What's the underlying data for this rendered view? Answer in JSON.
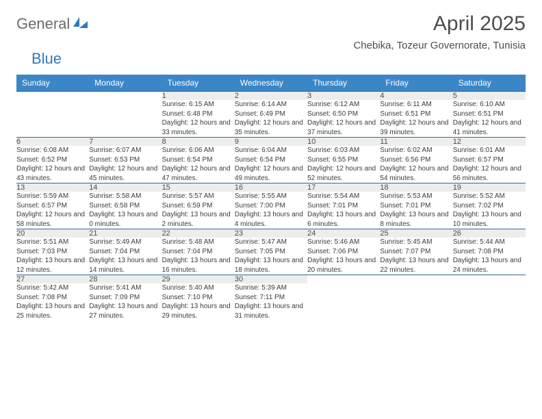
{
  "logo": {
    "part1": "General",
    "part2": "Blue"
  },
  "title": "April 2025",
  "location": "Chebika, Tozeur Governorate, Tunisia",
  "colors": {
    "header_bg": "#3b86c7",
    "header_text": "#ffffff",
    "daynum_bg": "#eceded",
    "row_border": "#2f6aa0",
    "body_text": "#3b3b3b",
    "title_text": "#4d4d4d",
    "logo_gray": "#6c6c6c",
    "logo_blue": "#2f79bf"
  },
  "day_names": [
    "Sunday",
    "Monday",
    "Tuesday",
    "Wednesday",
    "Thursday",
    "Friday",
    "Saturday"
  ],
  "weeks": [
    [
      null,
      null,
      {
        "n": "1",
        "sr": "6:15 AM",
        "ss": "6:48 PM",
        "dl": "12 hours and 33 minutes."
      },
      {
        "n": "2",
        "sr": "6:14 AM",
        "ss": "6:49 PM",
        "dl": "12 hours and 35 minutes."
      },
      {
        "n": "3",
        "sr": "6:12 AM",
        "ss": "6:50 PM",
        "dl": "12 hours and 37 minutes."
      },
      {
        "n": "4",
        "sr": "6:11 AM",
        "ss": "6:51 PM",
        "dl": "12 hours and 39 minutes."
      },
      {
        "n": "5",
        "sr": "6:10 AM",
        "ss": "6:51 PM",
        "dl": "12 hours and 41 minutes."
      }
    ],
    [
      {
        "n": "6",
        "sr": "6:08 AM",
        "ss": "6:52 PM",
        "dl": "12 hours and 43 minutes."
      },
      {
        "n": "7",
        "sr": "6:07 AM",
        "ss": "6:53 PM",
        "dl": "12 hours and 45 minutes."
      },
      {
        "n": "8",
        "sr": "6:06 AM",
        "ss": "6:54 PM",
        "dl": "12 hours and 47 minutes."
      },
      {
        "n": "9",
        "sr": "6:04 AM",
        "ss": "6:54 PM",
        "dl": "12 hours and 49 minutes."
      },
      {
        "n": "10",
        "sr": "6:03 AM",
        "ss": "6:55 PM",
        "dl": "12 hours and 52 minutes."
      },
      {
        "n": "11",
        "sr": "6:02 AM",
        "ss": "6:56 PM",
        "dl": "12 hours and 54 minutes."
      },
      {
        "n": "12",
        "sr": "6:01 AM",
        "ss": "6:57 PM",
        "dl": "12 hours and 56 minutes."
      }
    ],
    [
      {
        "n": "13",
        "sr": "5:59 AM",
        "ss": "6:57 PM",
        "dl": "12 hours and 58 minutes."
      },
      {
        "n": "14",
        "sr": "5:58 AM",
        "ss": "6:58 PM",
        "dl": "13 hours and 0 minutes."
      },
      {
        "n": "15",
        "sr": "5:57 AM",
        "ss": "6:59 PM",
        "dl": "13 hours and 2 minutes."
      },
      {
        "n": "16",
        "sr": "5:55 AM",
        "ss": "7:00 PM",
        "dl": "13 hours and 4 minutes."
      },
      {
        "n": "17",
        "sr": "5:54 AM",
        "ss": "7:01 PM",
        "dl": "13 hours and 6 minutes."
      },
      {
        "n": "18",
        "sr": "5:53 AM",
        "ss": "7:01 PM",
        "dl": "13 hours and 8 minutes."
      },
      {
        "n": "19",
        "sr": "5:52 AM",
        "ss": "7:02 PM",
        "dl": "13 hours and 10 minutes."
      }
    ],
    [
      {
        "n": "20",
        "sr": "5:51 AM",
        "ss": "7:03 PM",
        "dl": "13 hours and 12 minutes."
      },
      {
        "n": "21",
        "sr": "5:49 AM",
        "ss": "7:04 PM",
        "dl": "13 hours and 14 minutes."
      },
      {
        "n": "22",
        "sr": "5:48 AM",
        "ss": "7:04 PM",
        "dl": "13 hours and 16 minutes."
      },
      {
        "n": "23",
        "sr": "5:47 AM",
        "ss": "7:05 PM",
        "dl": "13 hours and 18 minutes."
      },
      {
        "n": "24",
        "sr": "5:46 AM",
        "ss": "7:06 PM",
        "dl": "13 hours and 20 minutes."
      },
      {
        "n": "25",
        "sr": "5:45 AM",
        "ss": "7:07 PM",
        "dl": "13 hours and 22 minutes."
      },
      {
        "n": "26",
        "sr": "5:44 AM",
        "ss": "7:08 PM",
        "dl": "13 hours and 24 minutes."
      }
    ],
    [
      {
        "n": "27",
        "sr": "5:42 AM",
        "ss": "7:08 PM",
        "dl": "13 hours and 25 minutes."
      },
      {
        "n": "28",
        "sr": "5:41 AM",
        "ss": "7:09 PM",
        "dl": "13 hours and 27 minutes."
      },
      {
        "n": "29",
        "sr": "5:40 AM",
        "ss": "7:10 PM",
        "dl": "13 hours and 29 minutes."
      },
      {
        "n": "30",
        "sr": "5:39 AM",
        "ss": "7:11 PM",
        "dl": "13 hours and 31 minutes."
      },
      null,
      null,
      null
    ]
  ],
  "labels": {
    "sunrise": "Sunrise:",
    "sunset": "Sunset:",
    "daylight": "Daylight:"
  }
}
